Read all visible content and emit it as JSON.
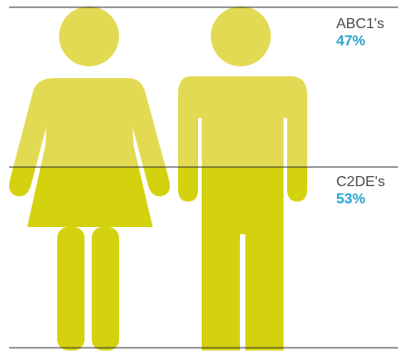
{
  "chart_data": {
    "type": "bar",
    "categories": [
      "ABC1's",
      "C2DE's"
    ],
    "series": [
      {
        "values": [
          47,
          53
        ],
        "display": [
          "47%",
          "53%"
        ]
      }
    ],
    "colors": {
      "figure_light": "#e2da52",
      "figure_dark": "#d4d10e",
      "value_text": "#2aa3cf",
      "label_text": "#4a4a4a",
      "rule": "#333333"
    },
    "icons": [
      "female-figure-icon",
      "male-figure-icon"
    ]
  }
}
